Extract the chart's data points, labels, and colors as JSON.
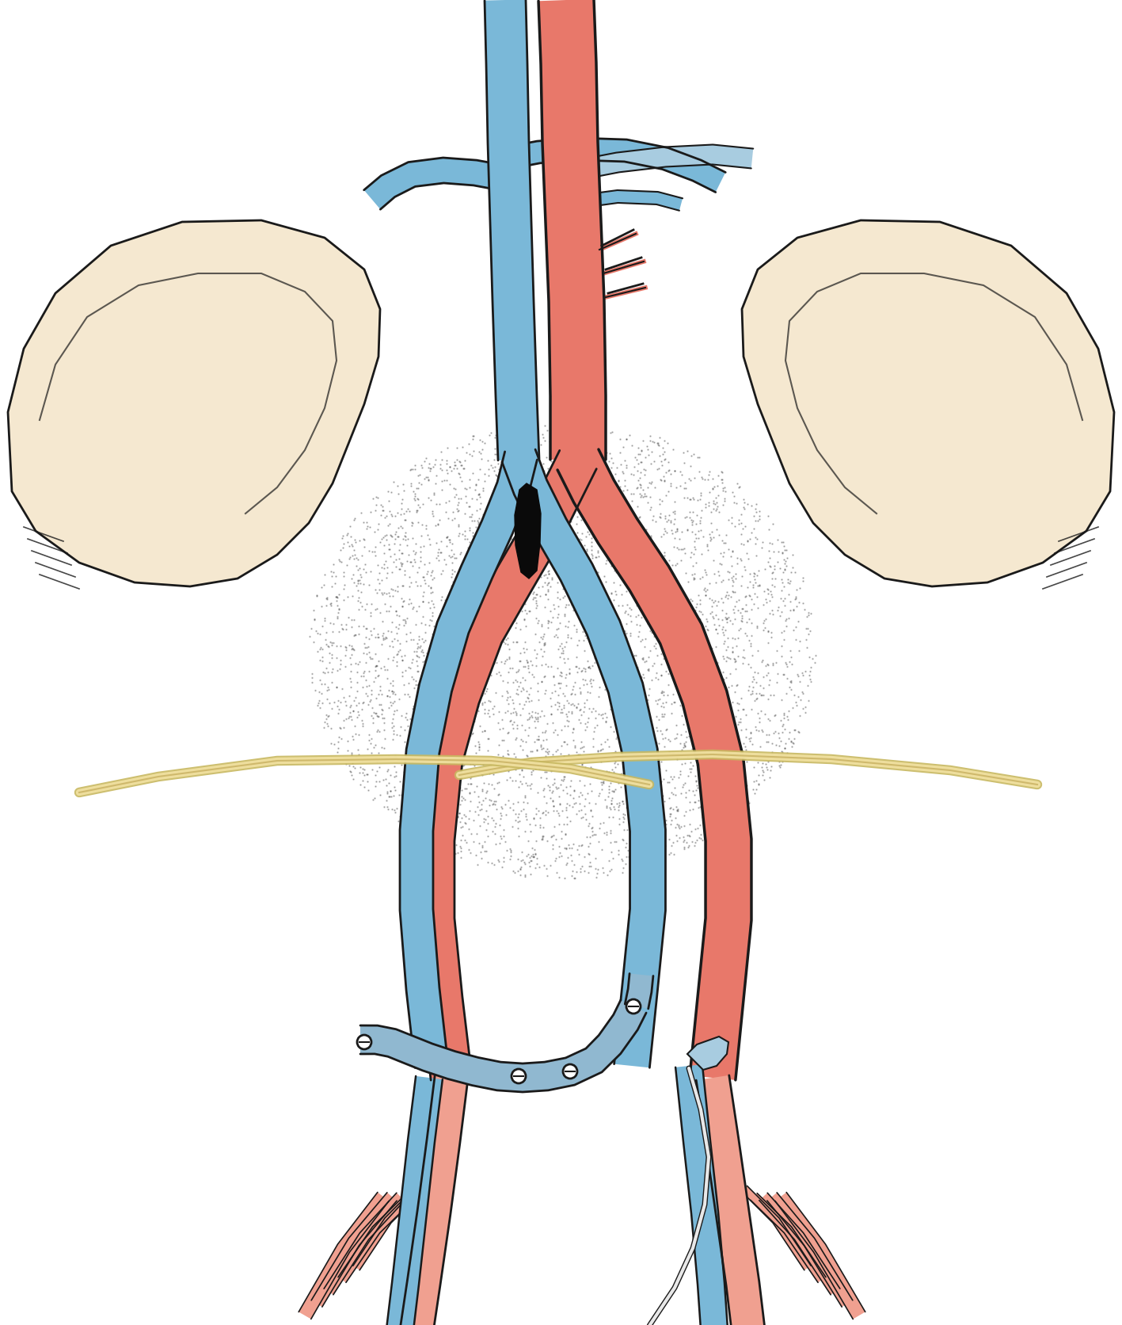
{
  "bg_color": "#ffffff",
  "vein_blue": "#7ab8d8",
  "vein_blue_light": "#a8cce0",
  "artery_red": "#e8786a",
  "artery_red_light": "#f0a090",
  "bone_color": "#f5e8d0",
  "bone_outline": "#c8a870",
  "bypass_blue": "#90b8d0",
  "black": "#1a1a1a",
  "dot_color": "#2a2a2a",
  "figure_width": 14.17,
  "figure_height": 16.72,
  "dpi": 100
}
